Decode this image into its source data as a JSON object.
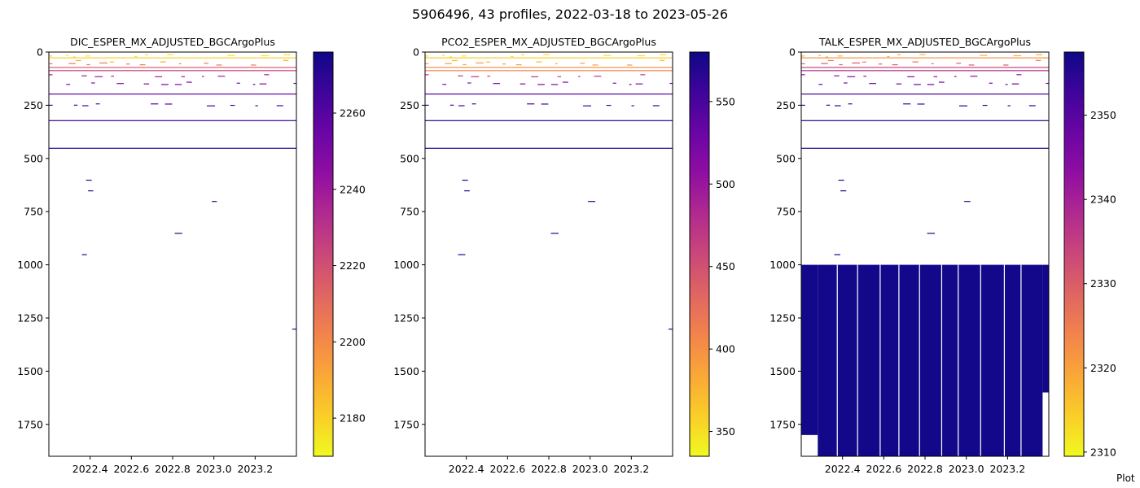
{
  "figure": {
    "title": "5906496, 43 profiles, 2022-03-18 to 2023-05-26",
    "footer": "Plot"
  },
  "chart_data": [
    {
      "type": "heatmap",
      "title": "DIC_ESPER_MX_ADJUSTED_BGCArgoPlus",
      "xlabel": "",
      "ylabel": "",
      "x_range": [
        2022.2,
        2023.4
      ],
      "y_range": [
        0,
        1900
      ],
      "y_inverted": true,
      "x_ticks": [
        "2022.4",
        "2022.6",
        "2022.8",
        "2023.0",
        "2023.2"
      ],
      "y_ticks": [
        "0",
        "250",
        "500",
        "750",
        "1000",
        "1250",
        "1500",
        "1750"
      ],
      "colormap": "plasma_r",
      "colorbar": {
        "range": [
          2170,
          2276
        ],
        "ticks": [
          "2180",
          "2200",
          "2220",
          "2240",
          "2260"
        ]
      },
      "layers": [
        {
          "depth": 15,
          "value": 2175
        },
        {
          "depth": 25,
          "value": 2180
        },
        {
          "depth": 40,
          "value": 2190
        },
        {
          "depth": 55,
          "value": 2205
        },
        {
          "depth": 70,
          "value": 2215
        },
        {
          "depth": 85,
          "value": 2225
        },
        {
          "depth": 110,
          "value": 2238
        },
        {
          "depth": 145,
          "value": 2250
        },
        {
          "depth": 195,
          "value": 2258
        },
        {
          "depth": 245,
          "value": 2262
        },
        {
          "depth": 320,
          "value": 2266
        },
        {
          "depth": 450,
          "value": 2270
        }
      ],
      "blocks": []
    },
    {
      "type": "heatmap",
      "title": "PCO2_ESPER_MX_ADJUSTED_BGCArgoPlus",
      "xlabel": "",
      "ylabel": "",
      "x_range": [
        2022.2,
        2023.4
      ],
      "y_range": [
        0,
        1900
      ],
      "y_inverted": true,
      "x_ticks": [
        "2022.4",
        "2022.6",
        "2022.8",
        "2023.0",
        "2023.2"
      ],
      "y_ticks": [
        "0",
        "250",
        "500",
        "750",
        "1000",
        "1250",
        "1500",
        "1750"
      ],
      "colormap": "plasma_r",
      "colorbar": {
        "range": [
          335,
          580
        ],
        "ticks": [
          "350",
          "400",
          "450",
          "500",
          "550"
        ]
      },
      "layers": [
        {
          "depth": 15,
          "value": 350
        },
        {
          "depth": 25,
          "value": 360
        },
        {
          "depth": 40,
          "value": 375
        },
        {
          "depth": 55,
          "value": 390
        },
        {
          "depth": 70,
          "value": 400
        },
        {
          "depth": 85,
          "value": 410
        },
        {
          "depth": 110,
          "value": 470
        },
        {
          "depth": 145,
          "value": 520
        },
        {
          "depth": 195,
          "value": 545
        },
        {
          "depth": 245,
          "value": 555
        },
        {
          "depth": 320,
          "value": 565
        },
        {
          "depth": 450,
          "value": 570
        }
      ],
      "blocks": []
    },
    {
      "type": "heatmap",
      "title": "TALK_ESPER_MX_ADJUSTED_BGCArgoPlus",
      "xlabel": "",
      "ylabel": "",
      "x_range": [
        2022.2,
        2023.4
      ],
      "y_range": [
        0,
        1900
      ],
      "y_inverted": true,
      "x_ticks": [
        "2022.4",
        "2022.6",
        "2022.8",
        "2023.0",
        "2023.2"
      ],
      "y_ticks": [
        "0",
        "250",
        "500",
        "750",
        "1000",
        "1250",
        "1500",
        "1750"
      ],
      "colormap": "plasma_r",
      "colorbar": {
        "range": [
          2309.5,
          2357.5
        ],
        "ticks": [
          "2310",
          "2320",
          "2330",
          "2340",
          "2350"
        ]
      },
      "layers": [
        {
          "depth": 15,
          "value": 2318
        },
        {
          "depth": 25,
          "value": 2322
        },
        {
          "depth": 40,
          "value": 2326
        },
        {
          "depth": 55,
          "value": 2330
        },
        {
          "depth": 70,
          "value": 2334
        },
        {
          "depth": 85,
          "value": 2338
        },
        {
          "depth": 110,
          "value": 2344
        },
        {
          "depth": 145,
          "value": 2348
        },
        {
          "depth": 195,
          "value": 2352
        },
        {
          "depth": 245,
          "value": 2354
        },
        {
          "depth": 320,
          "value": 2355
        },
        {
          "depth": 450,
          "value": 2356
        }
      ],
      "blocks": [
        {
          "x0": 2022.2,
          "x1": 2022.28,
          "d0": 1000,
          "d1": 1800,
          "value": 2357
        },
        {
          "x0": 2022.28,
          "x1": 2023.37,
          "d0": 1000,
          "d1": 1900,
          "value": 2357
        },
        {
          "x0": 2023.37,
          "x1": 2023.4,
          "d0": 1000,
          "d1": 1600,
          "value": 2357
        }
      ]
    }
  ]
}
